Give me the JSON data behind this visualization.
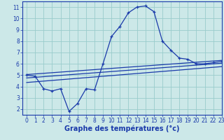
{
  "bg_color": "#cce8e8",
  "line_color": "#1a3aaa",
  "grid_color": "#99cccc",
  "xlabel": "Graphe des températures (°c)",
  "xlabel_fontsize": 7,
  "xlim": [
    -0.5,
    23
  ],
  "ylim": [
    1.5,
    11.5
  ],
  "yticks": [
    2,
    3,
    4,
    5,
    6,
    7,
    8,
    9,
    10,
    11
  ],
  "xticks": [
    0,
    1,
    2,
    3,
    4,
    5,
    6,
    7,
    8,
    9,
    10,
    11,
    12,
    13,
    14,
    15,
    16,
    17,
    18,
    19,
    20,
    21,
    22,
    23
  ],
  "series1_x": [
    0,
    1,
    2,
    3,
    4,
    5,
    6,
    7,
    8,
    9,
    10,
    11,
    12,
    13,
    14,
    15,
    16,
    17,
    18,
    19,
    20,
    21,
    22,
    23
  ],
  "series1_y": [
    5.0,
    4.9,
    3.8,
    3.6,
    3.8,
    1.8,
    2.5,
    3.8,
    3.7,
    6.0,
    8.4,
    9.3,
    10.5,
    11.0,
    11.1,
    10.6,
    8.0,
    7.2,
    6.5,
    6.4,
    6.0,
    6.0,
    6.1,
    6.2
  ],
  "series2_x": [
    0,
    23
  ],
  "series2_y": [
    5.05,
    6.3
  ],
  "series3_x": [
    0,
    23
  ],
  "series3_y": [
    4.75,
    6.05
  ],
  "series4_x": [
    0,
    23
  ],
  "series4_y": [
    4.35,
    5.75
  ]
}
